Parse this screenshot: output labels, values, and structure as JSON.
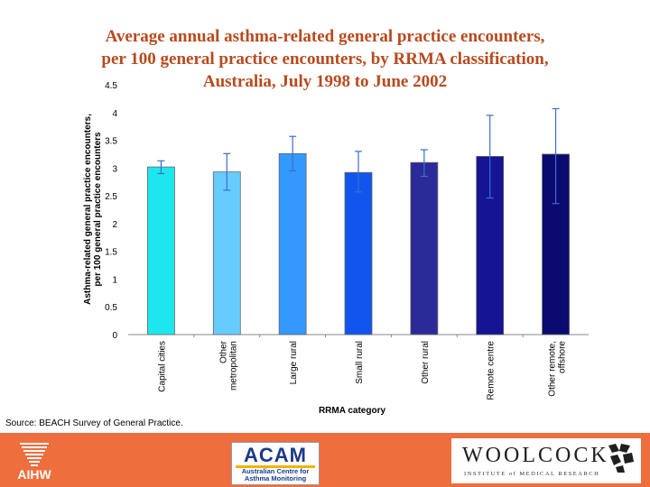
{
  "chart_data": {
    "type": "bar",
    "title_lines": [
      "Average annual asthma-related general practice encounters,",
      "per 100 general practice encounters, by RRMA classification,",
      "Australia, July 1998 to June 2002"
    ],
    "ylabel_lines": [
      "Asthma-related general practice encounters,",
      "per 100 general practice encounters"
    ],
    "xlabel": "RRMA category",
    "ylim": [
      0,
      4.5
    ],
    "yticks": [
      "0",
      "0.5",
      "1",
      "1.5",
      "2",
      "2.5",
      "3",
      "3.5",
      "4",
      "4.5"
    ],
    "grid": false,
    "legend": "none",
    "categories": [
      [
        "Capital cities"
      ],
      [
        "Other",
        "metropolitan"
      ],
      [
        "Large rural"
      ],
      [
        "Small rural"
      ],
      [
        "Other rural"
      ],
      [
        "Remote centre"
      ],
      [
        "Other remote,",
        "offshore"
      ]
    ],
    "values": [
      3.02,
      2.93,
      3.26,
      2.92,
      3.1,
      3.21,
      3.25
    ],
    "error_low": [
      2.9,
      2.6,
      2.95,
      2.57,
      2.85,
      2.46,
      2.36
    ],
    "error_high": [
      3.13,
      3.26,
      3.57,
      3.3,
      3.33,
      3.95,
      4.07
    ],
    "colors": [
      "#1ee6ee",
      "#66ccff",
      "#3399ff",
      "#1155ee",
      "#2a2a99",
      "#141494",
      "#0a0a70"
    ],
    "error_color": "#3a6fc8"
  },
  "source_text": "Source: BEACH Survey of General Practice.",
  "footer": {
    "aihw": "AIHW",
    "acam_big": "ACAM",
    "acam_sub_lines": [
      "Australian Centre for",
      "Asthma Monitoring"
    ],
    "woolcock_name": "WOOLCOCK",
    "woolcock_sub": "INSTITUTE of MEDICAL RESEARCH"
  }
}
